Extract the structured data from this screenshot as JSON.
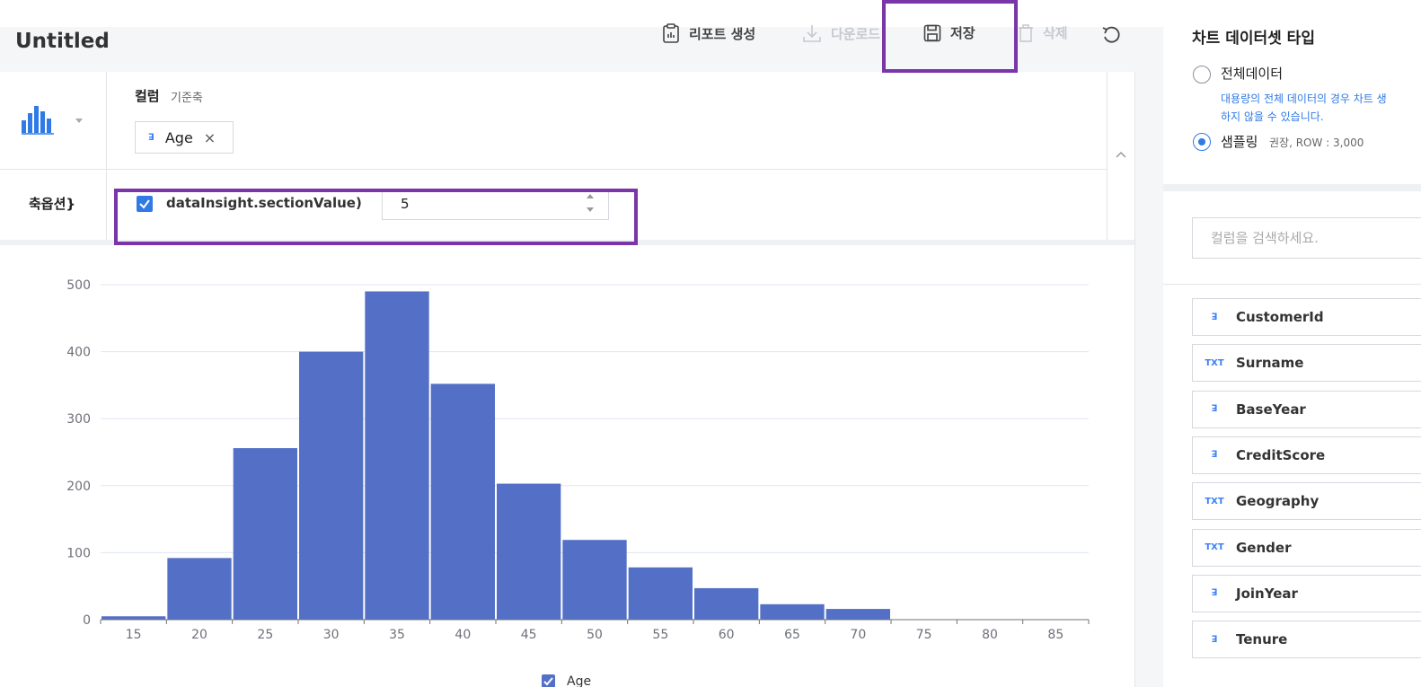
{
  "header": {
    "title": "Untitled",
    "buttons": {
      "report": "리포트 생성",
      "download": "다운로드",
      "save": "저장",
      "delete": "삭제"
    }
  },
  "config": {
    "column_label": "컬럼",
    "column_sub": "기준축",
    "column_chip_type": "ꓱ",
    "column_chip": "Age",
    "chip_close": "×",
    "options_label": "축옵션}",
    "section_checkbox_label": "dataInsight.sectionValue)",
    "section_value": "5"
  },
  "panel": {
    "title": "차트 데이터셋 타입",
    "radio_full": "전체데이터",
    "full_note_1": "대용량의 전체 데이터의 경우 차트 생",
    "full_note_2": "하지 않을 수 있습니다.",
    "radio_sampling": "샘플링",
    "sampling_note": "권장, ROW : 3,000",
    "search_placeholder": "컬럼을 검색하세요.",
    "columns": [
      {
        "type": "ꓱ",
        "name": "CustomerId"
      },
      {
        "type": "TXT",
        "name": "Surname"
      },
      {
        "type": "ꓱ",
        "name": "BaseYear"
      },
      {
        "type": "ꓱ",
        "name": "CreditScore"
      },
      {
        "type": "TXT",
        "name": "Geography"
      },
      {
        "type": "TXT",
        "name": "Gender"
      },
      {
        "type": "ꓱ",
        "name": "JoinYear"
      },
      {
        "type": "ꓱ",
        "name": "Tenure"
      }
    ]
  },
  "colors": {
    "bar": "#5470c6",
    "highlight": "#7a35a8",
    "accent": "#2f7ae5"
  },
  "chart_data": {
    "type": "bar",
    "categories": [
      "15",
      "20",
      "25",
      "30",
      "35",
      "40",
      "45",
      "50",
      "55",
      "60",
      "65",
      "70",
      "75",
      "80",
      "85"
    ],
    "values": [
      5,
      92,
      256,
      400,
      490,
      352,
      203,
      119,
      78,
      47,
      23,
      16,
      0,
      0,
      0
    ],
    "y_ticks": [
      0,
      100,
      200,
      300,
      400,
      500
    ],
    "ylim": [
      0,
      500
    ],
    "legend": "Age",
    "grid": true,
    "legend_position": "bottom-center"
  }
}
